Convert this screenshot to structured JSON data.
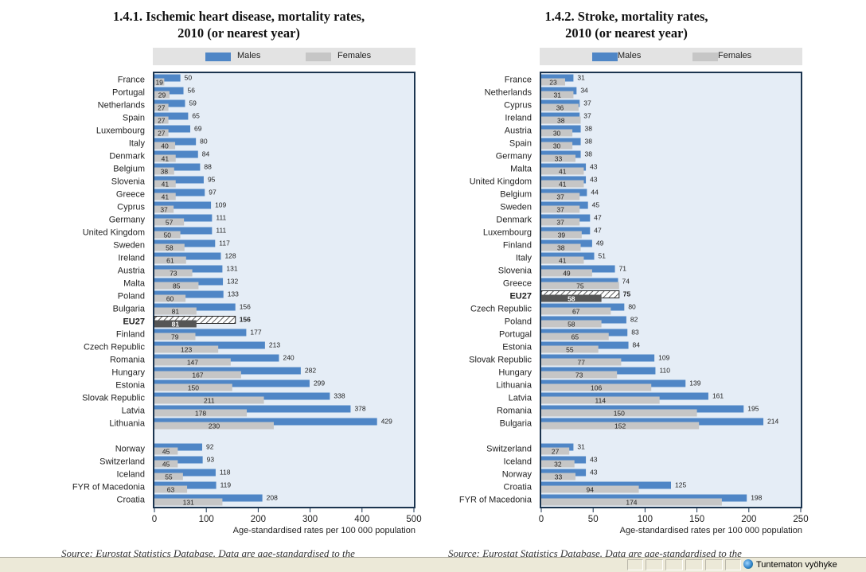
{
  "colors": {
    "males": "#4f86c6",
    "females": "#c6c6c6",
    "eu_males_hatch": "#333333",
    "eu_females": "#555555",
    "plot_bg": "#e5edf6"
  },
  "legend": {
    "males": "Males",
    "females": "Females"
  },
  "chart_data": [
    {
      "type": "bar",
      "orientation": "horizontal",
      "title_line1": "1.4.1.  Ischemic heart disease, mortality rates,",
      "title_line2": "2010 (or nearest year)",
      "xlabel": "Age-standardised rates per 100 000 population",
      "xlim": [
        0,
        500
      ],
      "xticks": [
        0,
        100,
        200,
        300,
        400,
        500
      ],
      "highlight": "EU27",
      "groups": [
        {
          "rows": [
            {
              "c": "France",
              "m": 50,
              "f": 19
            },
            {
              "c": "Portugal",
              "m": 56,
              "f": 29
            },
            {
              "c": "Netherlands",
              "m": 59,
              "f": 27
            },
            {
              "c": "Spain",
              "m": 65,
              "f": 27
            },
            {
              "c": "Luxembourg",
              "m": 69,
              "f": 27
            },
            {
              "c": "Italy",
              "m": 80,
              "f": 40
            },
            {
              "c": "Denmark",
              "m": 84,
              "f": 41
            },
            {
              "c": "Belgium",
              "m": 88,
              "f": 38
            },
            {
              "c": "Slovenia",
              "m": 95,
              "f": 41
            },
            {
              "c": "Greece",
              "m": 97,
              "f": 41
            },
            {
              "c": "Cyprus",
              "m": 109,
              "f": 37
            },
            {
              "c": "Germany",
              "m": 111,
              "f": 57
            },
            {
              "c": "United Kingdom",
              "m": 111,
              "f": 50
            },
            {
              "c": "Sweden",
              "m": 117,
              "f": 58
            },
            {
              "c": "Ireland",
              "m": 128,
              "f": 61
            },
            {
              "c": "Austria",
              "m": 131,
              "f": 73
            },
            {
              "c": "Malta",
              "m": 132,
              "f": 85
            },
            {
              "c": "Poland",
              "m": 133,
              "f": 60
            },
            {
              "c": "Bulgaria",
              "m": 156,
              "f": 81
            },
            {
              "c": "EU27",
              "m": 156,
              "f": 81
            },
            {
              "c": "Finland",
              "m": 177,
              "f": 79
            },
            {
              "c": "Czech Republic",
              "m": 213,
              "f": 123
            },
            {
              "c": "Romania",
              "m": 240,
              "f": 147
            },
            {
              "c": "Hungary",
              "m": 282,
              "f": 167
            },
            {
              "c": "Estonia",
              "m": 299,
              "f": 150
            },
            {
              "c": "Slovak Republic",
              "m": 338,
              "f": 211
            },
            {
              "c": "Latvia",
              "m": 378,
              "f": 178
            },
            {
              "c": "Lithuania",
              "m": 429,
              "f": 230
            }
          ]
        },
        {
          "rows": [
            {
              "c": "Norway",
              "m": 92,
              "f": 45
            },
            {
              "c": "Switzerland",
              "m": 93,
              "f": 45
            },
            {
              "c": "Iceland",
              "m": 118,
              "f": 55
            },
            {
              "c": "FYR of Macedonia",
              "m": 119,
              "f": 63
            },
            {
              "c": "Croatia",
              "m": 208,
              "f": 131
            }
          ]
        }
      ],
      "source": "Source: Eurostat Statistics Database. Data are age-standardised to the"
    },
    {
      "type": "bar",
      "orientation": "horizontal",
      "title_line1": "1.4.2.  Stroke, mortality rates,",
      "title_line2": "2010 (or nearest year)",
      "xlabel": "Age-standardised rates per 100 000 population",
      "xlim": [
        0,
        250
      ],
      "xticks": [
        0,
        50,
        100,
        150,
        200,
        250
      ],
      "highlight": "EU27",
      "groups": [
        {
          "rows": [
            {
              "c": "France",
              "m": 31,
              "f": 23
            },
            {
              "c": "Netherlands",
              "m": 34,
              "f": 31
            },
            {
              "c": "Cyprus",
              "m": 37,
              "f": 36
            },
            {
              "c": "Ireland",
              "m": 37,
              "f": 38
            },
            {
              "c": "Austria",
              "m": 38,
              "f": 30
            },
            {
              "c": "Spain",
              "m": 38,
              "f": 30
            },
            {
              "c": "Germany",
              "m": 38,
              "f": 33
            },
            {
              "c": "Malta",
              "m": 43,
              "f": 41
            },
            {
              "c": "United Kingdom",
              "m": 43,
              "f": 41
            },
            {
              "c": "Belgium",
              "m": 44,
              "f": 37
            },
            {
              "c": "Sweden",
              "m": 45,
              "f": 37
            },
            {
              "c": "Denmark",
              "m": 47,
              "f": 37
            },
            {
              "c": "Luxembourg",
              "m": 47,
              "f": 39
            },
            {
              "c": "Finland",
              "m": 49,
              "f": 38
            },
            {
              "c": "Italy",
              "m": 51,
              "f": 41
            },
            {
              "c": "Slovenia",
              "m": 71,
              "f": 49
            },
            {
              "c": "Greece",
              "m": 74,
              "f": 75
            },
            {
              "c": "EU27",
              "m": 75,
              "f": 58
            },
            {
              "c": "Czech Republic",
              "m": 80,
              "f": 67
            },
            {
              "c": "Poland",
              "m": 82,
              "f": 58
            },
            {
              "c": "Portugal",
              "m": 83,
              "f": 65
            },
            {
              "c": "Estonia",
              "m": 84,
              "f": 55
            },
            {
              "c": "Slovak Republic",
              "m": 109,
              "f": 77
            },
            {
              "c": "Hungary",
              "m": 110,
              "f": 73
            },
            {
              "c": "Lithuania",
              "m": 139,
              "f": 106
            },
            {
              "c": "Latvia",
              "m": 161,
              "f": 114
            },
            {
              "c": "Romania",
              "m": 195,
              "f": 150
            },
            {
              "c": "Bulgaria",
              "m": 214,
              "f": 152
            }
          ]
        },
        {
          "rows": [
            {
              "c": "Switzerland",
              "m": 31,
              "f": 27
            },
            {
              "c": "Iceland",
              "m": 43,
              "f": 32
            },
            {
              "c": "Norway",
              "m": 43,
              "f": 33
            },
            {
              "c": "Croatia",
              "m": 125,
              "f": 94
            },
            {
              "c": "FYR of Macedonia",
              "m": 198,
              "f": 174
            }
          ]
        }
      ],
      "source": "Source: Eurostat Statistics Database. Data are age-standardised to the"
    }
  ],
  "statusbar": {
    "zone": "Tuntematon vyöhyke"
  }
}
